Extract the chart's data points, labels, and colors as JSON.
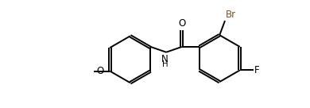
{
  "bg_color": "#ffffff",
  "bond_color": "#000000",
  "atom_colors": {
    "O": "#000000",
    "N": "#000000",
    "Br": "#7b5427",
    "F": "#000000",
    "C": "#000000"
  },
  "lw": 1.4,
  "dbo": 0.035,
  "fs": 8.5,
  "xlim": [
    0,
    10
  ],
  "ylim": [
    0,
    3.6
  ],
  "figsize": [
    3.9,
    1.36
  ],
  "dpi": 100,
  "r_ring": 0.78
}
